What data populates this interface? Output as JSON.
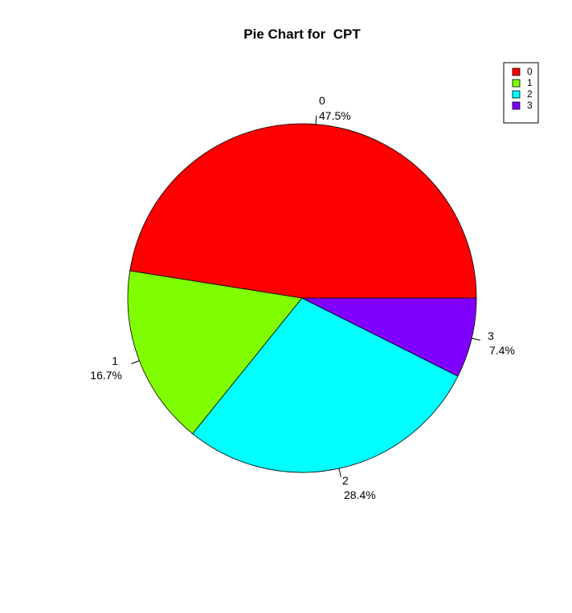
{
  "chart_data": {
    "type": "pie",
    "title": "Pie Chart for  CPT",
    "categories": [
      "0",
      "1",
      "2",
      "3"
    ],
    "values": [
      47.5,
      16.7,
      28.4,
      7.4
    ],
    "labels": [
      {
        "name": "0",
        "percent": "47.5%"
      },
      {
        "name": "1",
        "percent": "16.7%"
      },
      {
        "name": "2",
        "percent": "28.4%"
      },
      {
        "name": "3",
        "percent": "7.4%"
      }
    ],
    "colors": [
      "#FF0000",
      "#80FF00",
      "#00FFFF",
      "#8000FF"
    ],
    "legend": {
      "placement": "top-right",
      "entries": [
        "0",
        "1",
        "2",
        "3"
      ]
    }
  }
}
